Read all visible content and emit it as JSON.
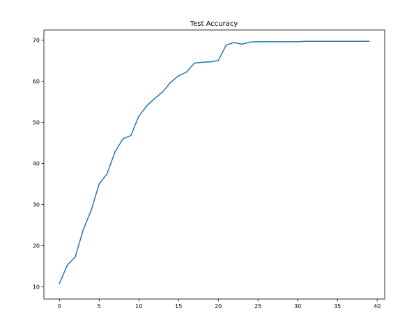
{
  "chart_data": {
    "type": "line",
    "title": "Test Accuracy",
    "xlabel": "",
    "ylabel": "",
    "xlim": [
      -1.95,
      40.95
    ],
    "ylim": [
      7.05,
      72.45
    ],
    "xticks": [
      0,
      5,
      10,
      15,
      20,
      25,
      30,
      35,
      40
    ],
    "yticks": [
      10,
      20,
      30,
      40,
      50,
      60,
      70
    ],
    "grid": false,
    "line_color": "#1f77b4",
    "series": [
      {
        "x": [
          0,
          1,
          2,
          3,
          4,
          5,
          6,
          7,
          8,
          9,
          10,
          11,
          12,
          13,
          14,
          15,
          16,
          17,
          18,
          19,
          20,
          21,
          22,
          23,
          24,
          25,
          26,
          27,
          28,
          29,
          30,
          31,
          32,
          33,
          34,
          35,
          36,
          37,
          38,
          39
        ],
        "values": [
          10.8,
          15.3,
          17.3,
          23.9,
          28.6,
          35.0,
          37.5,
          42.8,
          46.0,
          46.8,
          51.5,
          54.0,
          55.8,
          57.4,
          59.7,
          61.3,
          62.2,
          64.4,
          64.6,
          64.7,
          65.0,
          68.8,
          69.4,
          69.0,
          69.5,
          69.6,
          69.6,
          69.6,
          69.6,
          69.6,
          69.6,
          69.7,
          69.7,
          69.7,
          69.7,
          69.7,
          69.7,
          69.7,
          69.7,
          69.7
        ]
      }
    ]
  }
}
